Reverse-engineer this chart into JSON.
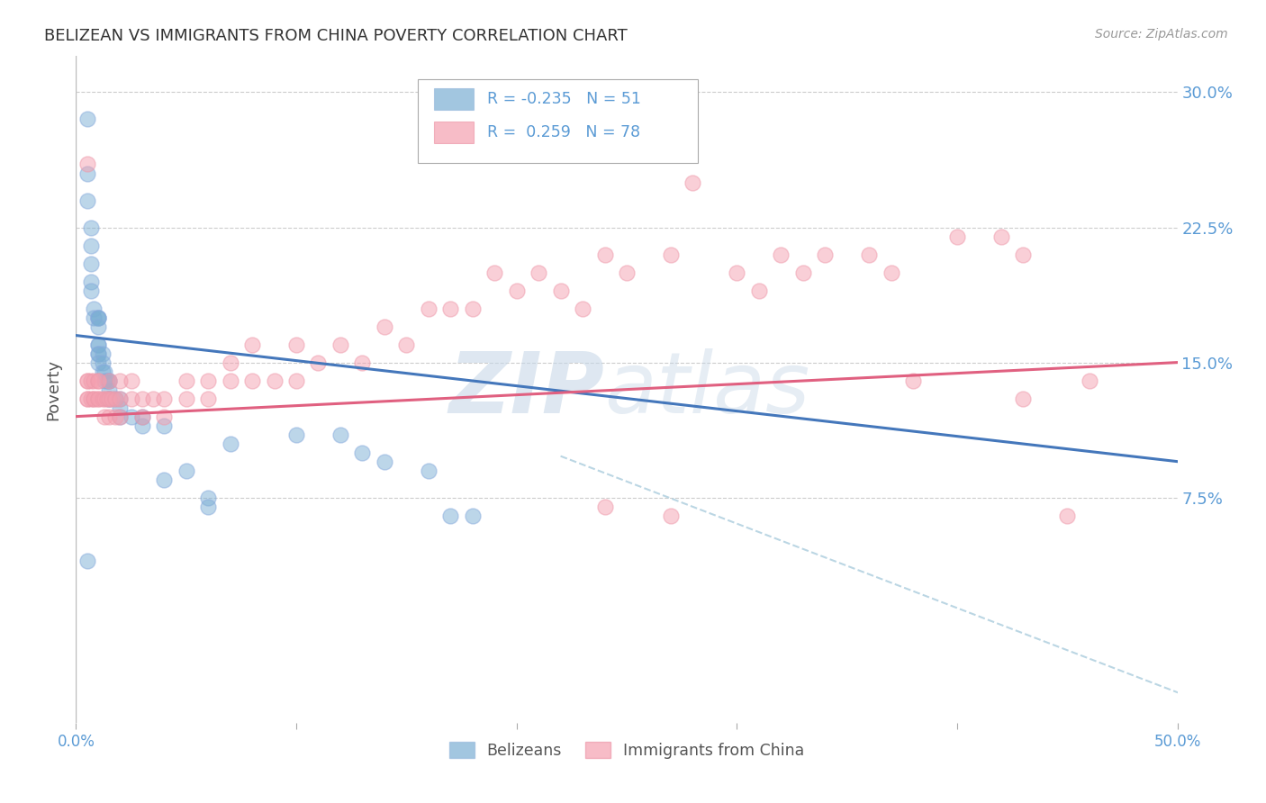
{
  "title": "BELIZEAN VS IMMIGRANTS FROM CHINA POVERTY CORRELATION CHART",
  "source": "Source: ZipAtlas.com",
  "ylabel": "Poverty",
  "xlim": [
    0.0,
    0.5
  ],
  "ylim": [
    -0.05,
    0.32
  ],
  "yticks": [
    0.075,
    0.15,
    0.225,
    0.3
  ],
  "ytick_labels": [
    "7.5%",
    "15.0%",
    "22.5%",
    "30.0%"
  ],
  "xticks": [
    0.0,
    0.1,
    0.2,
    0.3,
    0.4,
    0.5
  ],
  "xtick_labels": [
    "0.0%",
    "",
    "",
    "",
    "",
    "50.0%"
  ],
  "blue_R": -0.235,
  "blue_N": 51,
  "pink_R": 0.259,
  "pink_N": 78,
  "blue_color": "#7BAFD4",
  "pink_color": "#F4A0B0",
  "blue_line_color": "#4477BB",
  "pink_line_color": "#E06080",
  "blue_label": "Belizeans",
  "pink_label": "Immigrants from China",
  "axis_color": "#5B9BD5",
  "background_color": "#FFFFFF",
  "grid_color": "#CCCCCC",
  "blue_scatter_x": [
    0.005,
    0.005,
    0.005,
    0.007,
    0.007,
    0.007,
    0.007,
    0.007,
    0.008,
    0.008,
    0.01,
    0.01,
    0.01,
    0.01,
    0.01,
    0.01,
    0.01,
    0.01,
    0.01,
    0.012,
    0.012,
    0.012,
    0.013,
    0.013,
    0.014,
    0.015,
    0.015,
    0.015,
    0.015,
    0.015,
    0.018,
    0.02,
    0.02,
    0.02,
    0.025,
    0.03,
    0.03,
    0.04,
    0.04,
    0.05,
    0.06,
    0.06,
    0.07,
    0.1,
    0.12,
    0.13,
    0.14,
    0.16,
    0.17,
    0.18,
    0.005
  ],
  "blue_scatter_y": [
    0.285,
    0.255,
    0.24,
    0.225,
    0.215,
    0.205,
    0.195,
    0.19,
    0.18,
    0.175,
    0.175,
    0.175,
    0.175,
    0.17,
    0.16,
    0.16,
    0.155,
    0.155,
    0.15,
    0.155,
    0.15,
    0.145,
    0.145,
    0.14,
    0.14,
    0.14,
    0.14,
    0.135,
    0.13,
    0.13,
    0.13,
    0.13,
    0.125,
    0.12,
    0.12,
    0.12,
    0.115,
    0.115,
    0.085,
    0.09,
    0.075,
    0.07,
    0.105,
    0.11,
    0.11,
    0.1,
    0.095,
    0.09,
    0.065,
    0.065,
    0.04
  ],
  "pink_scatter_x": [
    0.005,
    0.005,
    0.005,
    0.005,
    0.007,
    0.007,
    0.008,
    0.008,
    0.008,
    0.01,
    0.01,
    0.01,
    0.01,
    0.012,
    0.013,
    0.013,
    0.014,
    0.015,
    0.015,
    0.015,
    0.016,
    0.018,
    0.018,
    0.02,
    0.02,
    0.02,
    0.025,
    0.025,
    0.03,
    0.03,
    0.035,
    0.04,
    0.04,
    0.05,
    0.05,
    0.06,
    0.06,
    0.07,
    0.07,
    0.08,
    0.08,
    0.09,
    0.1,
    0.1,
    0.11,
    0.12,
    0.13,
    0.14,
    0.15,
    0.16,
    0.17,
    0.18,
    0.19,
    0.2,
    0.21,
    0.22,
    0.23,
    0.24,
    0.25,
    0.27,
    0.28,
    0.3,
    0.31,
    0.32,
    0.33,
    0.34,
    0.36,
    0.37,
    0.38,
    0.4,
    0.42,
    0.43,
    0.45,
    0.46,
    0.24,
    0.27,
    0.43,
    0.005
  ],
  "pink_scatter_y": [
    0.13,
    0.13,
    0.14,
    0.14,
    0.13,
    0.14,
    0.13,
    0.13,
    0.14,
    0.13,
    0.13,
    0.14,
    0.14,
    0.13,
    0.12,
    0.13,
    0.13,
    0.12,
    0.13,
    0.14,
    0.13,
    0.12,
    0.13,
    0.12,
    0.13,
    0.14,
    0.13,
    0.14,
    0.12,
    0.13,
    0.13,
    0.12,
    0.13,
    0.13,
    0.14,
    0.13,
    0.14,
    0.14,
    0.15,
    0.14,
    0.16,
    0.14,
    0.14,
    0.16,
    0.15,
    0.16,
    0.15,
    0.17,
    0.16,
    0.18,
    0.18,
    0.18,
    0.2,
    0.19,
    0.2,
    0.19,
    0.18,
    0.21,
    0.2,
    0.21,
    0.25,
    0.2,
    0.19,
    0.21,
    0.2,
    0.21,
    0.21,
    0.2,
    0.14,
    0.22,
    0.22,
    0.21,
    0.065,
    0.14,
    0.07,
    0.065,
    0.13,
    0.26
  ]
}
